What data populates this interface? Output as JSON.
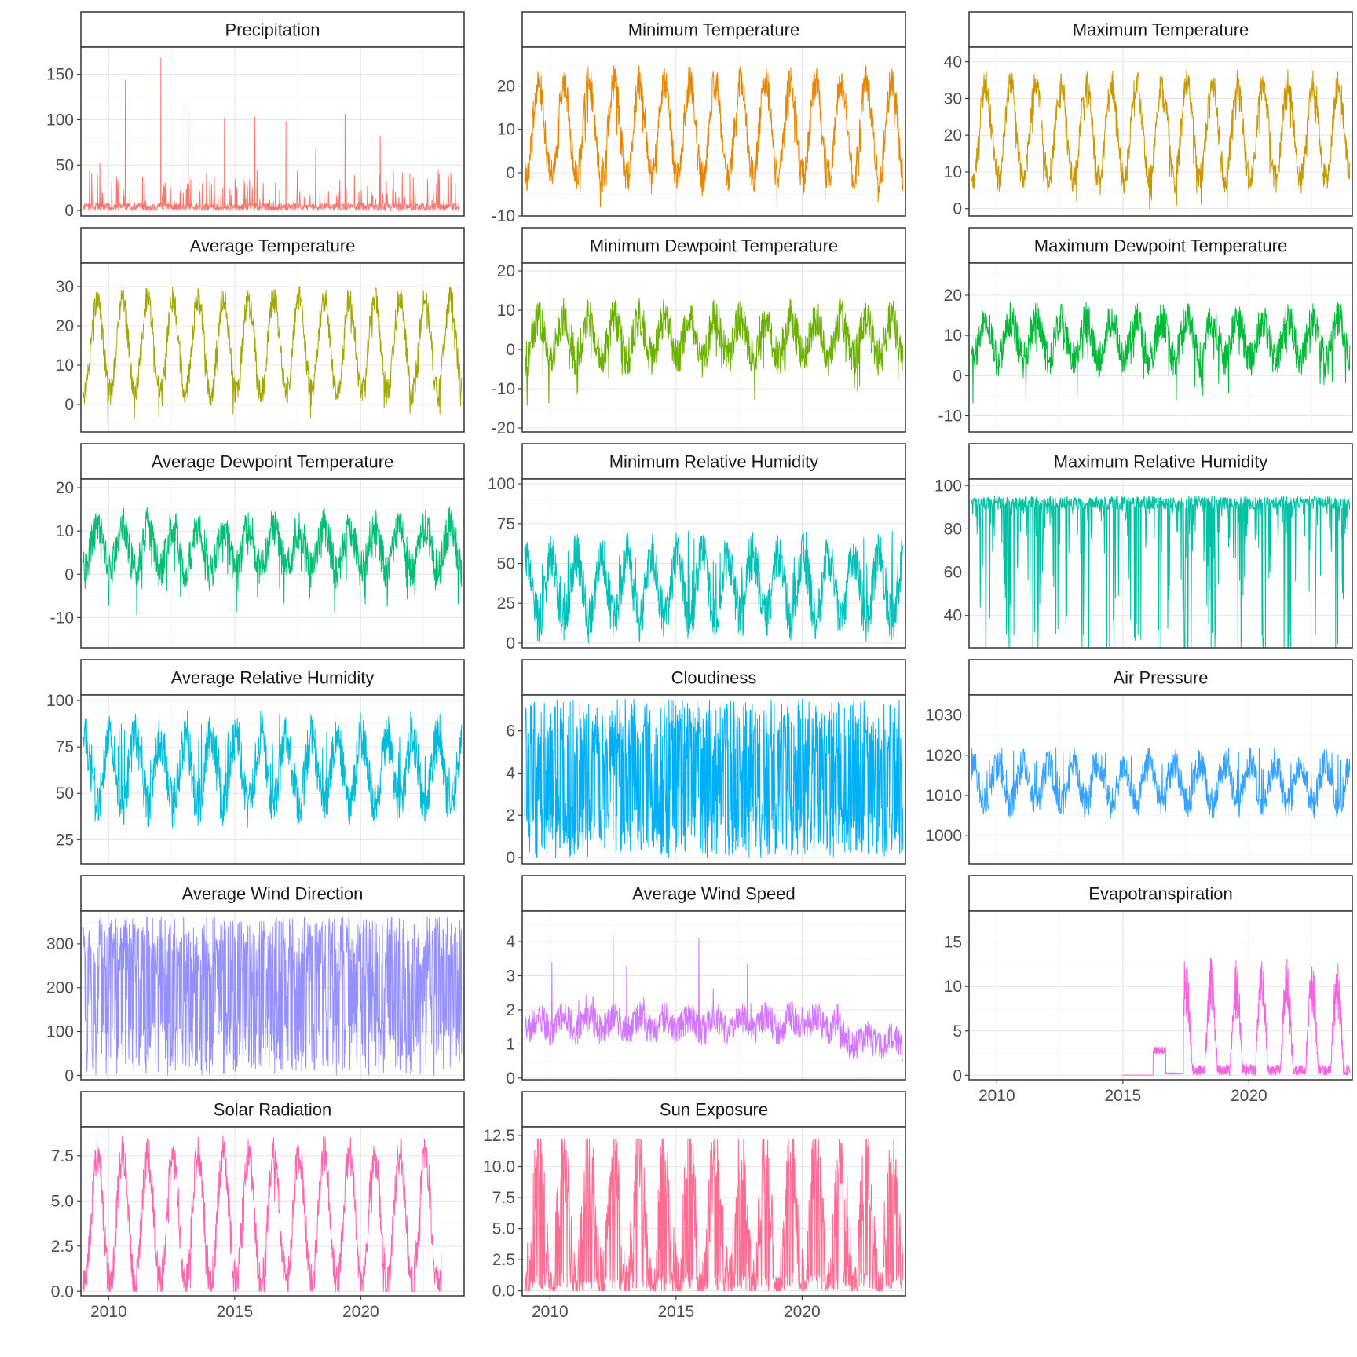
{
  "chart_data": {
    "type": "line",
    "x_ticks": [
      2010,
      2015,
      2020
    ],
    "x_range": [
      2008.9,
      2024.1
    ],
    "grid": true,
    "panels": [
      {
        "title": "Precipitation",
        "color": "#F8766D",
        "y_ticks": [
          "0",
          "50",
          "100",
          "150"
        ],
        "y_tick_values": [
          0,
          50,
          100,
          150
        ],
        "ylim": [
          -6,
          180
        ],
        "pattern": "spiky",
        "base": 0,
        "min": 0,
        "max": 170,
        "noise": 0,
        "seasonal_amp": 0,
        "spike_values": [
          52,
          143,
          168,
          115,
          102,
          103,
          98,
          68,
          106,
          82,
          40,
          36
        ],
        "start": 2009.0,
        "end": 2023.9
      },
      {
        "title": "Minimum Temperature",
        "color": "#E58700",
        "y_ticks": [
          "-10",
          "0",
          "10",
          "20"
        ],
        "y_tick_values": [
          -10,
          0,
          10,
          20
        ],
        "ylim": [
          -10,
          29
        ],
        "pattern": "seasonal",
        "base": 10,
        "seasonal_amp": 11,
        "noise": 4,
        "min": -8,
        "max": 27,
        "start": 2009.0,
        "end": 2024.0
      },
      {
        "title": "Maximum Temperature",
        "color": "#C99800",
        "y_ticks": [
          "0",
          "10",
          "20",
          "30",
          "40"
        ],
        "y_tick_values": [
          0,
          10,
          20,
          30,
          40
        ],
        "ylim": [
          -2,
          44
        ],
        "pattern": "seasonal",
        "base": 21,
        "seasonal_amp": 13,
        "noise": 4,
        "min": 0,
        "max": 42,
        "start": 2009.0,
        "end": 2024.0
      },
      {
        "title": "Average Temperature",
        "color": "#A3A500",
        "y_ticks": [
          "0",
          "10",
          "20",
          "30"
        ],
        "y_tick_values": [
          0,
          10,
          20,
          30
        ],
        "ylim": [
          -7,
          36
        ],
        "pattern": "seasonal",
        "base": 15,
        "seasonal_amp": 12,
        "noise": 3.5,
        "min": -5,
        "max": 34,
        "start": 2009.0,
        "end": 2024.0
      },
      {
        "title": "Minimum Dewpoint Temperature",
        "color": "#6BB100",
        "y_ticks": [
          "-20",
          "-10",
          "0",
          "10",
          "20"
        ],
        "y_tick_values": [
          -20,
          -10,
          0,
          10,
          20
        ],
        "ylim": [
          -21,
          22
        ],
        "pattern": "seasonal",
        "base": 3,
        "seasonal_amp": 5,
        "noise": 5,
        "min": -19,
        "max": 19,
        "start": 2009.0,
        "end": 2024.0
      },
      {
        "title": "Maximum Dewpoint Temperature",
        "color": "#00BA38",
        "y_ticks": [
          "-10",
          "0",
          "10",
          "20"
        ],
        "y_tick_values": [
          -10,
          0,
          10,
          20
        ],
        "ylim": [
          -14,
          28
        ],
        "pattern": "seasonal",
        "base": 9,
        "seasonal_amp": 5,
        "noise": 4.5,
        "min": -13,
        "max": 25,
        "start": 2009.0,
        "end": 2024.0
      },
      {
        "title": "Average Dewpoint Temperature",
        "color": "#00BF74",
        "y_ticks": [
          "-10",
          "0",
          "10",
          "20"
        ],
        "y_tick_values": [
          -10,
          0,
          10,
          20
        ],
        "ylim": [
          -17,
          22
        ],
        "pattern": "seasonal",
        "base": 6,
        "seasonal_amp": 5,
        "noise": 4.5,
        "min": -15,
        "max": 20,
        "start": 2009.0,
        "end": 2024.0
      },
      {
        "title": "Minimum Relative Humidity",
        "color": "#00C0B8",
        "y_ticks": [
          "0",
          "25",
          "50",
          "75",
          "100"
        ],
        "y_tick_values": [
          0,
          25,
          50,
          75,
          100
        ],
        "ylim": [
          -3,
          103
        ],
        "pattern": "seasonal_inv",
        "base": 35,
        "seasonal_amp": 20,
        "noise": 15,
        "min": 0,
        "max": 100,
        "start": 2009.0,
        "end": 2024.0
      },
      {
        "title": "Maximum Relative Humidity",
        "color": "#00C1A3",
        "y_ticks": [
          "40",
          "60",
          "80",
          "100"
        ],
        "y_tick_values": [
          40,
          60,
          80,
          100
        ],
        "ylim": [
          25,
          103
        ],
        "pattern": "ceiling",
        "base": 95,
        "seasonal_amp": 8,
        "noise": 12,
        "min": 25,
        "max": 100,
        "start": 2009.0,
        "end": 2024.0
      },
      {
        "title": "Average Relative Humidity",
        "color": "#00BCD8",
        "y_ticks": [
          "25",
          "50",
          "75",
          "100"
        ],
        "y_tick_values": [
          25,
          50,
          75,
          100
        ],
        "ylim": [
          12,
          103
        ],
        "pattern": "seasonal_inv",
        "base": 62,
        "seasonal_amp": 18,
        "noise": 13,
        "min": 15,
        "max": 100,
        "start": 2009.0,
        "end": 2024.0
      },
      {
        "title": "Cloudiness",
        "color": "#00B0F6",
        "y_ticks": [
          "0",
          "2",
          "4",
          "6"
        ],
        "y_tick_values": [
          0,
          2,
          4,
          6
        ],
        "ylim": [
          -0.3,
          7.7
        ],
        "pattern": "dense_range",
        "base": 3.5,
        "seasonal_amp": 1.5,
        "noise": 3.5,
        "min": 0,
        "max": 7.5,
        "start": 2009.0,
        "end": 2024.0
      },
      {
        "title": "Air Pressure",
        "color": "#35A2FF",
        "y_ticks": [
          "1000",
          "1010",
          "1020",
          "1030"
        ],
        "y_tick_values": [
          1000,
          1010,
          1020,
          1030
        ],
        "ylim": [
          993,
          1035
        ],
        "pattern": "seasonal_inv",
        "base": 1013,
        "seasonal_amp": 5,
        "noise": 4,
        "min": 994,
        "max": 1033,
        "start": 2009.0,
        "end": 2024.0
      },
      {
        "title": "Average Wind Direction",
        "color": "#9590FF",
        "y_ticks": [
          "0",
          "100",
          "200",
          "300"
        ],
        "y_tick_values": [
          0,
          100,
          200,
          300
        ],
        "ylim": [
          -10,
          375
        ],
        "pattern": "dense_range",
        "base": 230,
        "seasonal_amp": 20,
        "noise": 140,
        "min": 0,
        "max": 360,
        "start": 2009.0,
        "end": 2024.0
      },
      {
        "title": "Average Wind Speed",
        "color": "#D277FF",
        "y_ticks": [
          "0",
          "1",
          "2",
          "3",
          "4"
        ],
        "y_tick_values": [
          0,
          1,
          2,
          3,
          4
        ],
        "ylim": [
          -0.05,
          4.9
        ],
        "pattern": "wind",
        "base": 1.6,
        "seasonal_amp": 0.4,
        "noise": 0.45,
        "min": 0,
        "max": 4.7,
        "start": 2009.0,
        "end": 2024.0
      },
      {
        "title": "Evapotranspiration",
        "color": "#F763E0",
        "y_ticks": [
          "0",
          "5",
          "10",
          "15"
        ],
        "y_tick_values": [
          0,
          5,
          10,
          15
        ],
        "ylim": [
          -0.5,
          18.5
        ],
        "pattern": "evap",
        "base": 4,
        "seasonal_amp": 6,
        "noise": 2.2,
        "min": 0,
        "max": 17.8,
        "start": 2015.0,
        "end": 2024.0
      },
      {
        "title": "Solar Radiation",
        "color": "#FF65AE",
        "y_ticks": [
          "0.0",
          "2.5",
          "5.0",
          "7.5"
        ],
        "y_tick_values": [
          0,
          2.5,
          5,
          7.5
        ],
        "ylim": [
          -0.25,
          9.1
        ],
        "pattern": "seasonal",
        "base": 4.0,
        "seasonal_amp": 3.6,
        "noise": 1.1,
        "min": 0,
        "max": 8.6,
        "start": 2009.0,
        "end": 2023.2
      },
      {
        "title": "Sun Exposure",
        "color": "#FF6C91",
        "y_ticks": [
          "0.0",
          "2.5",
          "5.0",
          "7.5",
          "10.0",
          "12.5"
        ],
        "y_tick_values": [
          0,
          2.5,
          5,
          7.5,
          10,
          12.5
        ],
        "ylim": [
          -0.4,
          13.2
        ],
        "pattern": "seasonal_dense",
        "base": 5.5,
        "seasonal_amp": 5.5,
        "noise": 3.5,
        "min": 0,
        "max": 12.2,
        "start": 2009.0,
        "end": 2024.0
      }
    ]
  }
}
